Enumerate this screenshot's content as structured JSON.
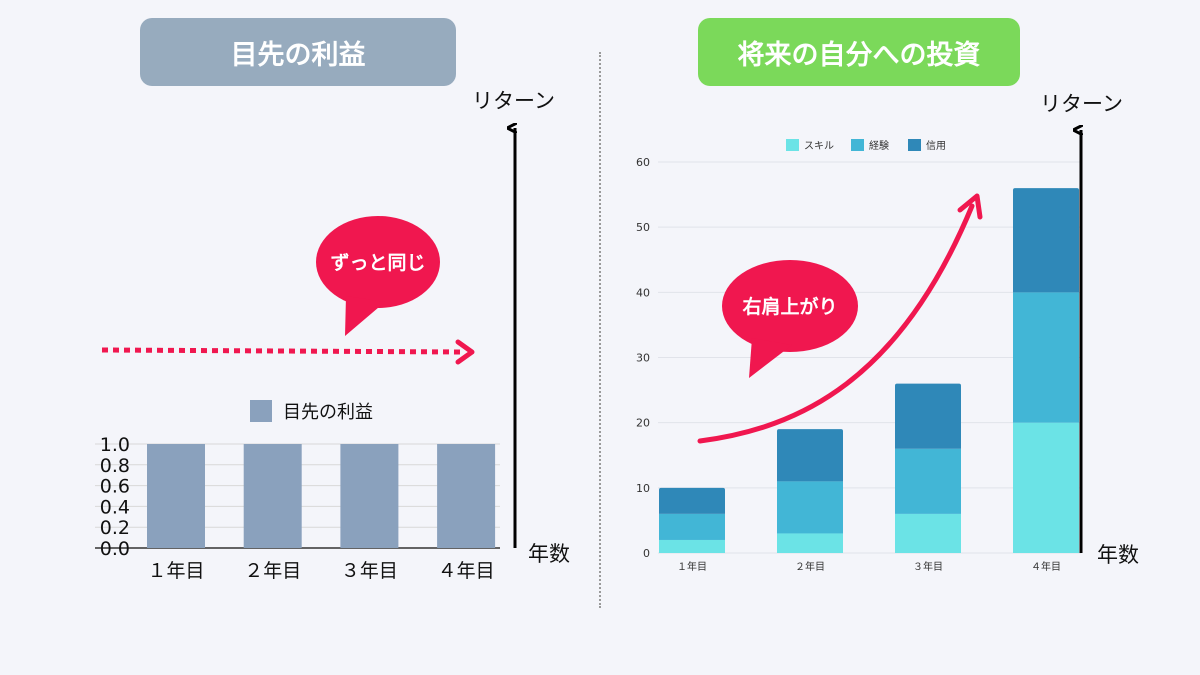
{
  "left": {
    "title": "目先の利益",
    "y_axis_word": "リターン",
    "x_axis_word": "年数",
    "bubble": "ずっと同じ"
  },
  "right": {
    "title": "将来の自分への投資",
    "y_axis_word": "リターン",
    "x_axis_word": "年数",
    "bubble": "右肩上がり"
  },
  "colors": {
    "left_bar": "#8aa1bd",
    "skill": "#6be3e6",
    "experience": "#42b6d6",
    "credit": "#2f88b8",
    "accent": "#f0174f",
    "left_title_bg": "#97abbe",
    "right_title_bg": "#7bd95a"
  },
  "chart_data": [
    {
      "type": "bar",
      "categories": [
        "１年目",
        "２年目",
        "３年目",
        "４年目"
      ],
      "series": [
        {
          "name": "目先の利益",
          "values": [
            1.0,
            1.0,
            1.0,
            1.0
          ]
        }
      ],
      "ylim": [
        0.0,
        1.0
      ],
      "yticks": [
        "0.0",
        "0.2",
        "0.4",
        "0.6",
        "0.8",
        "1.0"
      ],
      "legend": "top",
      "grid": true
    },
    {
      "type": "bar",
      "stacked": true,
      "categories": [
        "１年目",
        "２年目",
        "３年目",
        "４年目"
      ],
      "series": [
        {
          "name": "スキル",
          "values": [
            2,
            3,
            6,
            20
          ]
        },
        {
          "name": "経験",
          "values": [
            4,
            8,
            10,
            20
          ]
        },
        {
          "name": "信用",
          "values": [
            4,
            8,
            10,
            16
          ]
        }
      ],
      "ylim": [
        0,
        60
      ],
      "yticks": [
        "0",
        "10",
        "20",
        "30",
        "40",
        "50",
        "60"
      ],
      "legend": "top",
      "grid": true
    }
  ]
}
